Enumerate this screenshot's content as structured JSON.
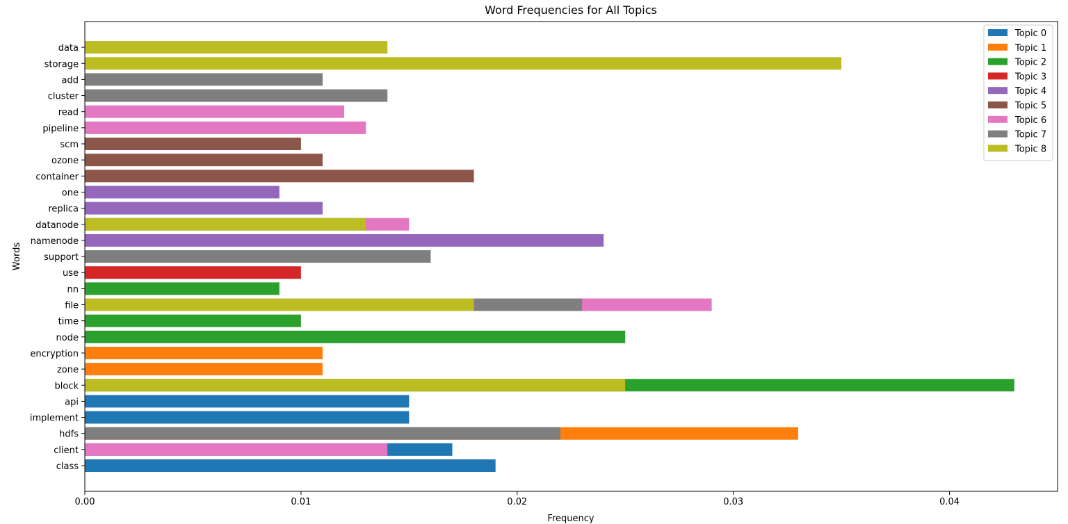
{
  "chart_data": {
    "type": "bar",
    "orientation": "horizontal",
    "stacking": "overlaid",
    "title": "Word Frequencies for All Topics",
    "xlabel": "Frequency",
    "ylabel": "Words",
    "xlim": [
      0,
      0.045
    ],
    "xticks": [
      {
        "value": 0,
        "label": "0.00"
      },
      {
        "value": 0.01,
        "label": "0.01"
      },
      {
        "value": 0.02,
        "label": "0.02"
      },
      {
        "value": 0.03,
        "label": "0.03"
      },
      {
        "value": 0.04,
        "label": "0.04"
      }
    ],
    "grid": false,
    "legend_position": "top-right",
    "categories": [
      "class",
      "client",
      "hdfs",
      "implement",
      "api",
      "block",
      "zone",
      "encryption",
      "node",
      "time",
      "file",
      "nn",
      "use",
      "support",
      "namenode",
      "datanode",
      "replica",
      "one",
      "container",
      "ozone",
      "scm",
      "pipeline",
      "read",
      "cluster",
      "add",
      "storage",
      "data"
    ],
    "series": [
      {
        "name": "Topic 0",
        "color": "#1f77b4",
        "points": [
          {
            "word": "class",
            "value": 0.019
          },
          {
            "word": "client",
            "value": 0.017
          },
          {
            "word": "implement",
            "value": 0.015
          },
          {
            "word": "api",
            "value": 0.015
          }
        ]
      },
      {
        "name": "Topic 1",
        "color": "#ff7f0e",
        "points": [
          {
            "word": "hdfs",
            "value": 0.033
          },
          {
            "word": "zone",
            "value": 0.011
          },
          {
            "word": "encryption",
            "value": 0.011
          }
        ]
      },
      {
        "name": "Topic 2",
        "color": "#2ca02c",
        "points": [
          {
            "word": "block",
            "value": 0.043
          },
          {
            "word": "node",
            "value": 0.025
          },
          {
            "word": "time",
            "value": 0.01
          },
          {
            "word": "nn",
            "value": 0.009
          }
        ]
      },
      {
        "name": "Topic 3",
        "color": "#d62728",
        "points": [
          {
            "word": "use",
            "value": 0.01
          }
        ]
      },
      {
        "name": "Topic 4",
        "color": "#9467bd",
        "points": [
          {
            "word": "namenode",
            "value": 0.024
          },
          {
            "word": "replica",
            "value": 0.011
          },
          {
            "word": "one",
            "value": 0.009
          }
        ]
      },
      {
        "name": "Topic 5",
        "color": "#8c564b",
        "points": [
          {
            "word": "container",
            "value": 0.018
          },
          {
            "word": "ozone",
            "value": 0.011
          },
          {
            "word": "scm",
            "value": 0.01
          }
        ]
      },
      {
        "name": "Topic 6",
        "color": "#e377c2",
        "points": [
          {
            "word": "client",
            "value": 0.014
          },
          {
            "word": "file",
            "value": 0.029
          },
          {
            "word": "datanode",
            "value": 0.015
          },
          {
            "word": "pipeline",
            "value": 0.013
          },
          {
            "word": "read",
            "value": 0.012
          }
        ]
      },
      {
        "name": "Topic 7",
        "color": "#7f7f7f",
        "points": [
          {
            "word": "hdfs",
            "value": 0.022
          },
          {
            "word": "file",
            "value": 0.023
          },
          {
            "word": "support",
            "value": 0.016
          },
          {
            "word": "cluster",
            "value": 0.014
          },
          {
            "word": "add",
            "value": 0.011
          }
        ]
      },
      {
        "name": "Topic 8",
        "color": "#bcbd22",
        "points": [
          {
            "word": "block",
            "value": 0.025
          },
          {
            "word": "file",
            "value": 0.018
          },
          {
            "word": "datanode",
            "value": 0.013
          },
          {
            "word": "storage",
            "value": 0.035
          },
          {
            "word": "data",
            "value": 0.014
          }
        ]
      }
    ]
  }
}
